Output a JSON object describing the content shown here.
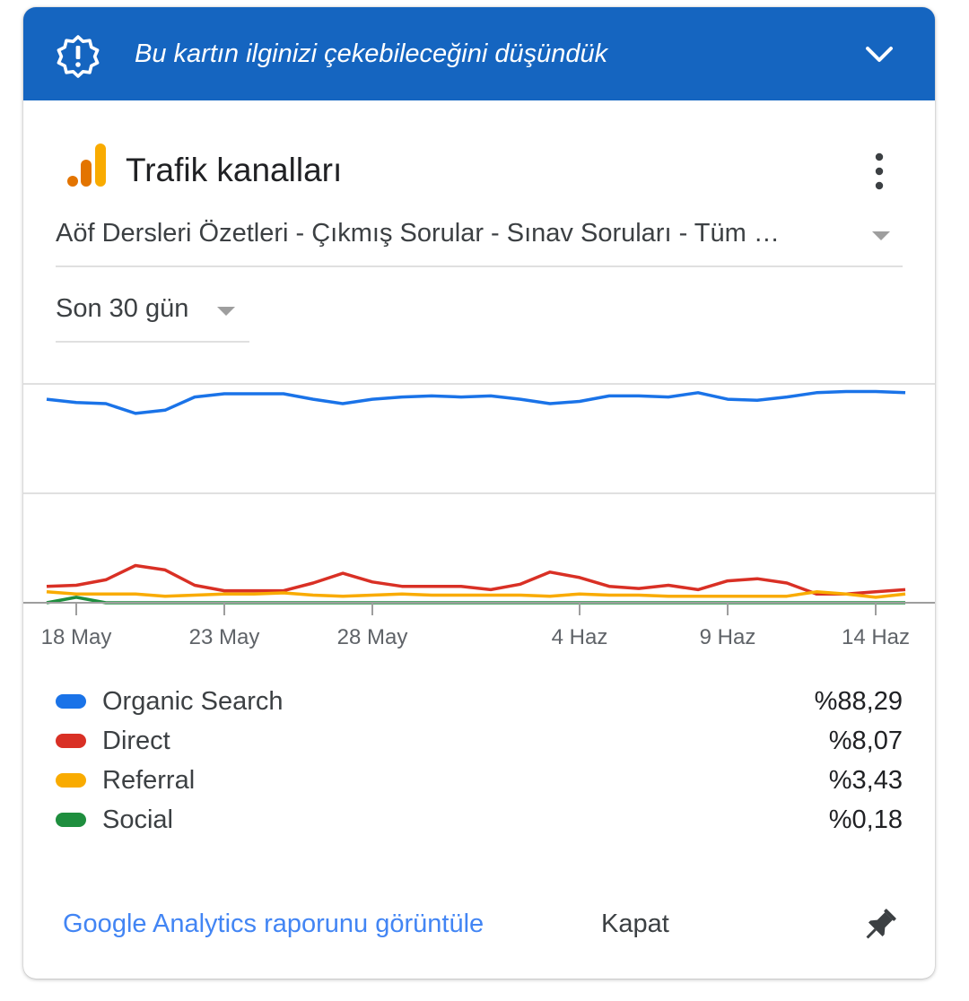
{
  "banner": {
    "text": "Bu kartın ilginizi çekebileceğini düşündük",
    "icon": "alert-badge-icon",
    "chevron": "chevron-down-icon",
    "color": "#1565c0"
  },
  "card": {
    "title": "Trafik kanalları",
    "logo": "google-analytics-logo",
    "menu_icon": "more-vert-icon",
    "property": "Aöf Dersleri Özetleri - Çıkmış Sorular - Sınav Soruları - Tüm …",
    "date_range": "Son 30 gün"
  },
  "chart_data": {
    "type": "line",
    "x_ticks": [
      "18 May",
      "23 May",
      "28 May",
      "4 Haz",
      "9 Haz",
      "14 Haz"
    ],
    "x_range": [
      "17 May",
      "15 Haz"
    ],
    "grid": true,
    "series": [
      {
        "name": "Organic Search",
        "color": "#1a73e8",
        "values": [
          1.86,
          1.83,
          1.82,
          1.73,
          1.76,
          1.88,
          1.91,
          1.91,
          1.91,
          1.86,
          1.82,
          1.86,
          1.88,
          1.89,
          1.88,
          1.89,
          1.86,
          1.82,
          1.84,
          1.89,
          1.89,
          1.88,
          1.92,
          1.86,
          1.85,
          1.88,
          1.92,
          1.93,
          1.93,
          1.92
        ]
      },
      {
        "name": "Direct",
        "color": "#d93025",
        "values": [
          0.15,
          0.16,
          0.21,
          0.34,
          0.3,
          0.16,
          0.11,
          0.11,
          0.11,
          0.18,
          0.27,
          0.19,
          0.15,
          0.15,
          0.15,
          0.12,
          0.17,
          0.28,
          0.23,
          0.15,
          0.13,
          0.16,
          0.12,
          0.2,
          0.22,
          0.18,
          0.08,
          0.08,
          0.1,
          0.12
        ]
      },
      {
        "name": "Referral",
        "color": "#f9ab00",
        "values": [
          0.1,
          0.08,
          0.08,
          0.08,
          0.06,
          0.07,
          0.08,
          0.08,
          0.09,
          0.07,
          0.06,
          0.07,
          0.08,
          0.07,
          0.07,
          0.07,
          0.07,
          0.06,
          0.08,
          0.07,
          0.07,
          0.06,
          0.06,
          0.06,
          0.06,
          0.06,
          0.1,
          0.08,
          0.05,
          0.08
        ]
      },
      {
        "name": "Social",
        "color": "#1e8e3e",
        "values": [
          0.0,
          0.05,
          0.0,
          0.0,
          0.0,
          0.0,
          0.0,
          0.0,
          0.0,
          0.0,
          0.0,
          0.0,
          0.0,
          0.0,
          0.0,
          0.0,
          0.0,
          0.0,
          0.0,
          0.0,
          0.0,
          0.0,
          0.0,
          0.0,
          0.0,
          0.0,
          0.0,
          0.0,
          0.0,
          0.0
        ]
      }
    ]
  },
  "legend": [
    {
      "name": "Organic Search",
      "value": "%88,29",
      "color": "#1a73e8"
    },
    {
      "name": "Direct",
      "value": "%8,07",
      "color": "#d93025"
    },
    {
      "name": "Referral",
      "value": "%3,43",
      "color": "#f9ab00"
    },
    {
      "name": "Social",
      "value": "%0,18",
      "color": "#1e8e3e"
    }
  ],
  "footer": {
    "link": "Google Analytics raporunu görüntüle",
    "close": "Kapat",
    "pin_icon": "pin-icon"
  }
}
